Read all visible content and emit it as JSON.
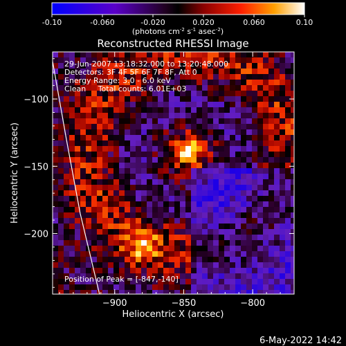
{
  "colorbar": {
    "tick_labels": [
      "-0.10",
      "-0.060",
      "-0.020",
      "0.020",
      "0.060",
      "0.10"
    ],
    "tick_values": [
      -0.1,
      -0.06,
      -0.02,
      0.02,
      0.06,
      0.1
    ],
    "range": [
      -0.1,
      0.1
    ],
    "unit_label": "(photons cm",
    "unit_exp1": "-2",
    "unit_mid": " s",
    "unit_exp2": "-1",
    "unit_mid2": " asec",
    "unit_exp3": "-2",
    "unit_end": ")",
    "colormap": "blue-purple-black-red-yellow-white"
  },
  "chart_data": {
    "type": "heatmap",
    "title": "Reconstructed RHESSI Image",
    "xlabel": "Heliocentric X (arcsec)",
    "ylabel": "Heliocentric Y (arcsec)",
    "xlim": [
      -945,
      -770
    ],
    "ylim": [
      -245,
      -65
    ],
    "x_ticks": [
      -900,
      -850,
      -800
    ],
    "x_tick_labels": [
      "−900",
      "−850",
      "−800"
    ],
    "y_ticks": [
      -100,
      -150,
      -200
    ],
    "y_tick_labels": [
      "−100",
      "−150",
      "−200"
    ],
    "info_lines": [
      "29-Jun-2007 13:18:32.000 to 13:20:48.000",
      "Detectors: 3F 4F 5F 6F 7F 8F, Att 0",
      "Energy Range: 3.0 - 6.0 keV",
      "Clean     Total counts: 6.01E+03"
    ],
    "peak_label": "Position of Peak = [-847,-140]",
    "peak": [
      -847,
      -140
    ],
    "limb": [
      [
        -945,
        -72
      ],
      [
        -935,
        -130
      ],
      [
        -925,
        -185
      ],
      [
        -911,
        -245
      ]
    ],
    "sources": [
      {
        "x": -847,
        "y": -140,
        "amp": 1.0,
        "w": 5
      },
      {
        "x": -880,
        "y": -208,
        "amp": 0.55,
        "w": 10
      }
    ]
  },
  "footer": {
    "date": "6-May-2022 14:42"
  }
}
